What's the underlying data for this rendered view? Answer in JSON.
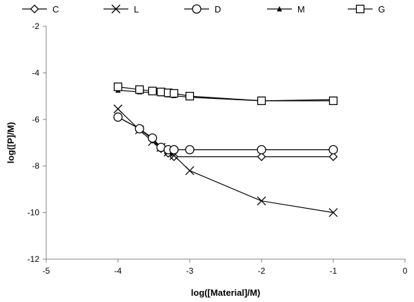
{
  "chart_data": {
    "type": "line",
    "title": "",
    "xlabel": "log([Material]/M)",
    "ylabel": "log([P]/M)",
    "xlim": [
      -5,
      0
    ],
    "ylim": [
      -12,
      -2
    ],
    "xticks": [
      -5,
      -4,
      -3,
      -2,
      -1,
      0
    ],
    "yticks": [
      -12,
      -10,
      -8,
      -6,
      -4,
      -2
    ],
    "grid": false,
    "legend_position": "top",
    "series": [
      {
        "name": "C",
        "marker": "diamond",
        "color": "#000000",
        "x": [
          -4,
          -3.7,
          -3.52,
          -3.4,
          -3.3,
          -3.22,
          -2,
          -1
        ],
        "y": [
          -5.9,
          -6.4,
          -6.85,
          -7.25,
          -7.45,
          -7.6,
          -7.6,
          -7.6
        ]
      },
      {
        "name": "L",
        "marker": "x",
        "color": "#000000",
        "x": [
          -4,
          -3.7,
          -3.52,
          -3.4,
          -3.3,
          -3.22,
          -3,
          -2,
          -1
        ],
        "y": [
          -5.55,
          -6.45,
          -6.95,
          -7.2,
          -7.4,
          -7.55,
          -8.2,
          -9.5,
          -10
        ]
      },
      {
        "name": "D",
        "marker": "circle",
        "color": "#000000",
        "x": [
          -4,
          -3.7,
          -3.52,
          -3.4,
          -3.3,
          -3.22,
          -3,
          -2,
          -1
        ],
        "y": [
          -5.9,
          -6.4,
          -6.8,
          -7.2,
          -7.3,
          -7.3,
          -7.3,
          -7.3,
          -7.3
        ]
      },
      {
        "name": "M",
        "marker": "triangle",
        "color": "#000000",
        "x": [
          -4,
          -3.7,
          -3.52,
          -3.4,
          -3.3,
          -3.22,
          -3,
          -2,
          -1
        ],
        "y": [
          -4.75,
          -4.82,
          -4.85,
          -4.9,
          -4.95,
          -4.98,
          -5.05,
          -5.2,
          -5.15
        ]
      },
      {
        "name": "G",
        "marker": "square",
        "color": "#000000",
        "x": [
          -4,
          -3.7,
          -3.52,
          -3.4,
          -3.3,
          -3.22,
          -3,
          -2,
          -1
        ],
        "y": [
          -4.6,
          -4.72,
          -4.78,
          -4.82,
          -4.86,
          -4.88,
          -5.0,
          -5.2,
          -5.2
        ]
      }
    ]
  }
}
